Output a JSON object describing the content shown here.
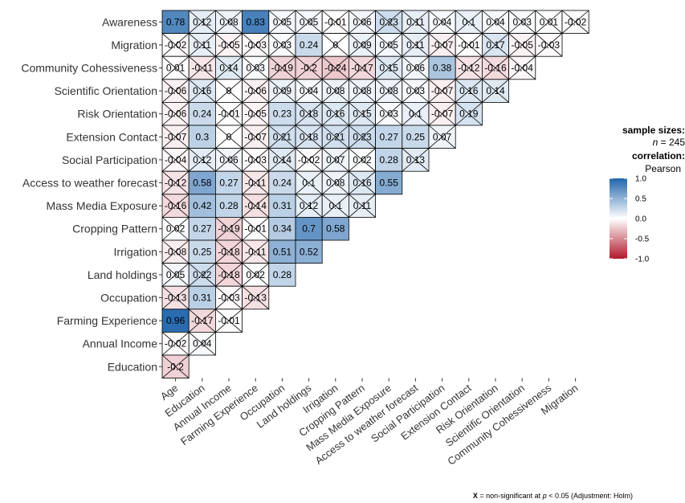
{
  "chart_data": {
    "type": "heatmap",
    "subtype": "lower-triangular correlation matrix",
    "rows": [
      "Awareness",
      "Migration",
      "Community Cohessiveness",
      "Scientific Orientation",
      "Risk Orientation",
      "Extension Contact",
      "Social Participation",
      "Access to weather forecast",
      "Mass Media Exposure",
      "Cropping Pattern",
      "Irrigation",
      "Land holdings",
      "Occupation",
      "Farming Experience",
      "Annual Income",
      "Education"
    ],
    "columns": [
      "Age",
      "Education",
      "Annual Income",
      "Farming Experience",
      "Occupation",
      "Land holdings",
      "Irrigation",
      "Cropping Pattern",
      "Mass Media Exposure",
      "Access to weather forecast",
      "Social Participation",
      "Extension Contact",
      "Risk Orientation",
      "Scientific Orientation",
      "Community Cohessiveness",
      "Migration"
    ],
    "values": [
      [
        "0.78",
        "0.12",
        "0.08",
        "0.83",
        "0.05",
        "0.05",
        "-0.01",
        "0.06",
        "0.23",
        "0.11",
        "0.04",
        "0.1",
        "0.04",
        "0.03",
        "0.01",
        "-0.02"
      ],
      [
        "-0.02",
        "0.11",
        "-0.05",
        "-0.03",
        "0.03",
        "0.24",
        "0",
        "0.09",
        "0.05",
        "0.11",
        "-0.07",
        "-0.01",
        "0.17",
        "-0.05",
        "-0.03"
      ],
      [
        "0.01",
        "-0.11",
        "0.14",
        "0.03",
        "-0.19",
        "-0.2",
        "-0.24",
        "-0.17",
        "0.15",
        "0.06",
        "0.38",
        "-0.12",
        "-0.16",
        "-0.04"
      ],
      [
        "-0.06",
        "0.16",
        "0",
        "-0.06",
        "0.09",
        "0.04",
        "0.08",
        "0.08",
        "0.08",
        "0.03",
        "-0.07",
        "0.16",
        "0.14"
      ],
      [
        "-0.06",
        "0.24",
        "-0.01",
        "-0.05",
        "0.23",
        "0.18",
        "0.16",
        "0.15",
        "0.03",
        "0.1",
        "-0.07",
        "0.19"
      ],
      [
        "-0.07",
        "0.3",
        "0",
        "-0.07",
        "0.21",
        "0.18",
        "0.21",
        "0.23",
        "0.27",
        "0.25",
        "0.07"
      ],
      [
        "-0.04",
        "0.12",
        "0.06",
        "-0.03",
        "0.14",
        "-0.02",
        "0.07",
        "0.02",
        "0.28",
        "0.13"
      ],
      [
        "-0.12",
        "0.58",
        "0.27",
        "-0.11",
        "0.24",
        "0.1",
        "0.08",
        "0.16",
        "0.55"
      ],
      [
        "-0.16",
        "0.42",
        "0.28",
        "-0.14",
        "0.31",
        "0.12",
        "0.1",
        "0.11"
      ],
      [
        "0.02",
        "0.27",
        "-0.19",
        "-0.01",
        "0.34",
        "0.7",
        "0.58"
      ],
      [
        "-0.08",
        "0.25",
        "-0.18",
        "-0.11",
        "0.51",
        "0.52"
      ],
      [
        "0.05",
        "0.22",
        "-0.18",
        "0.02",
        "0.28"
      ],
      [
        "-0.13",
        "0.31",
        "-0.03",
        "-0.13"
      ],
      [
        "0.96",
        "-0.17",
        "-0.01"
      ],
      [
        "-0.02",
        "0.04"
      ],
      [
        "-0.2"
      ]
    ],
    "significant": [
      [
        true,
        false,
        false,
        true,
        false,
        false,
        false,
        false,
        false,
        false,
        false,
        false,
        false,
        false,
        false,
        false
      ],
      [
        false,
        false,
        false,
        false,
        false,
        true,
        false,
        false,
        false,
        false,
        false,
        false,
        false,
        false,
        false
      ],
      [
        false,
        false,
        false,
        false,
        false,
        false,
        false,
        false,
        false,
        false,
        true,
        false,
        false,
        false
      ],
      [
        false,
        false,
        false,
        false,
        false,
        false,
        false,
        false,
        false,
        false,
        false,
        false,
        false
      ],
      [
        false,
        true,
        false,
        false,
        true,
        false,
        false,
        false,
        false,
        false,
        false,
        false
      ],
      [
        false,
        true,
        false,
        false,
        false,
        false,
        false,
        false,
        true,
        true,
        false
      ],
      [
        false,
        false,
        false,
        false,
        false,
        false,
        false,
        false,
        true,
        false
      ],
      [
        false,
        true,
        true,
        false,
        true,
        false,
        false,
        false,
        true
      ],
      [
        false,
        true,
        true,
        false,
        true,
        false,
        false,
        false
      ],
      [
        false,
        true,
        false,
        false,
        true,
        true,
        true
      ],
      [
        false,
        true,
        false,
        false,
        true,
        true
      ],
      [
        false,
        false,
        false,
        false,
        true
      ],
      [
        false,
        true,
        false,
        false
      ],
      [
        true,
        false,
        false
      ],
      [
        false,
        false
      ],
      [
        false
      ]
    ],
    "legend": {
      "sample_sizes_title": "sample sizes:",
      "n_label": "n",
      "n_value": "= 245",
      "correlation_title": "correlation:",
      "method": "Pearson",
      "ticks": [
        "1.0",
        "0.5",
        "0.0",
        "-0.5",
        "-1.0"
      ],
      "placement": "right"
    },
    "caption": {
      "marker": "X",
      "text_before": " = non-significant at ",
      "p_symbol": "p",
      "text_after": " < 0.05 (Adjustment: Holm)"
    },
    "color_scale": {
      "low": "#B2182B",
      "mid": "#FFFFFF",
      "high": "#2166AC",
      "range": [
        -1,
        1
      ]
    }
  }
}
